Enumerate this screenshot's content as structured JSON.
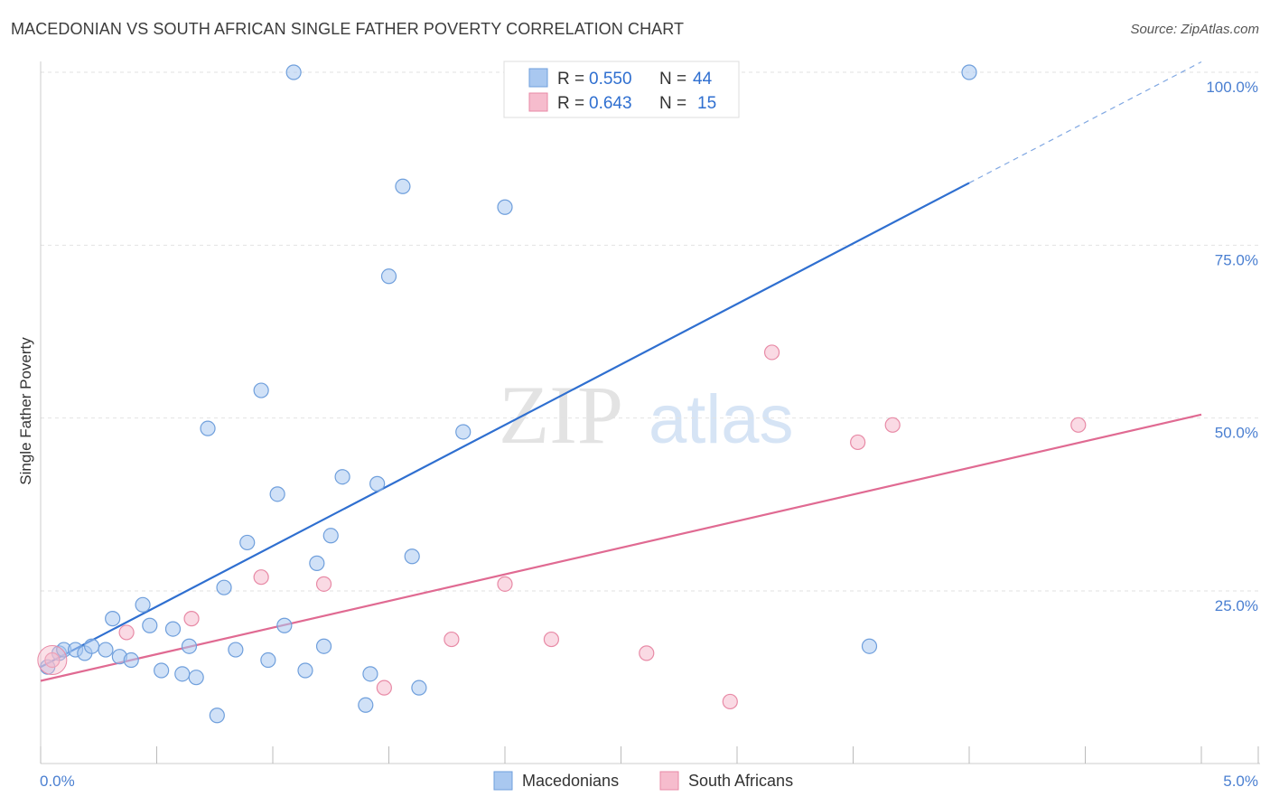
{
  "title": "MACEDONIAN VS SOUTH AFRICAN SINGLE FATHER POVERTY CORRELATION CHART",
  "source": "Source: ZipAtlas.com",
  "watermark": {
    "zip": "ZIP",
    "atlas": "atlas"
  },
  "legend": {
    "rows": [
      {
        "r_label": "R = ",
        "r_value": "0.550",
        "n_label": "N = ",
        "n_value": "44",
        "color": "#a9c8f0",
        "stroke": "#6f9fdc"
      },
      {
        "r_label": "R = ",
        "r_value": "0.643",
        "n_label": "N = ",
        "n_value": "15",
        "color": "#f6bccd",
        "stroke": "#e88aa6"
      }
    ]
  },
  "chart_data": {
    "type": "scatter",
    "title": "MACEDONIAN VS SOUTH AFRICAN SINGLE FATHER POVERTY CORRELATION CHART",
    "xlabel": "",
    "ylabel": "Single Father Poverty",
    "xlim": [
      0,
      5
    ],
    "ylim": [
      0,
      100
    ],
    "x_tick_labels": [
      "0.0%",
      "5.0%"
    ],
    "y_tick_labels": [
      "25.0%",
      "50.0%",
      "75.0%",
      "100.0%"
    ],
    "y_ticks": [
      25,
      50,
      75,
      100
    ],
    "grid": true,
    "legend_position": "top-center",
    "series": [
      {
        "name": "Macedonians",
        "color": "#a9c8f0",
        "stroke": "#6f9fdc",
        "line_color": "#2f6fd0",
        "trend": {
          "x0": 0.0,
          "y0": 14.0,
          "x1": 4.0,
          "y1": 84.0,
          "dash_to_x": 5.0,
          "dash_to_y": 101.5
        },
        "points": [
          [
            0.03,
            14.0
          ],
          [
            0.08,
            16.0
          ],
          [
            0.1,
            16.5
          ],
          [
            0.15,
            16.5
          ],
          [
            0.19,
            16.0
          ],
          [
            0.22,
            17.0
          ],
          [
            0.28,
            16.5
          ],
          [
            0.31,
            21.0
          ],
          [
            0.34,
            15.5
          ],
          [
            0.39,
            15.0
          ],
          [
            0.44,
            23.0
          ],
          [
            0.47,
            20.0
          ],
          [
            0.52,
            13.5
          ],
          [
            0.57,
            19.5
          ],
          [
            0.61,
            13.0
          ],
          [
            0.64,
            17.0
          ],
          [
            0.67,
            12.5
          ],
          [
            0.72,
            48.5
          ],
          [
            0.76,
            7.0
          ],
          [
            0.79,
            25.5
          ],
          [
            0.84,
            16.5
          ],
          [
            0.89,
            32.0
          ],
          [
            0.95,
            54.0
          ],
          [
            0.98,
            15.0
          ],
          [
            1.02,
            39.0
          ],
          [
            1.05,
            20.0
          ],
          [
            1.09,
            100.0
          ],
          [
            1.14,
            13.5
          ],
          [
            1.19,
            29.0
          ],
          [
            1.22,
            17.0
          ],
          [
            1.25,
            33.0
          ],
          [
            1.3,
            41.5
          ],
          [
            1.4,
            8.5
          ],
          [
            1.42,
            13.0
          ],
          [
            1.45,
            40.5
          ],
          [
            1.5,
            70.5
          ],
          [
            1.56,
            83.5
          ],
          [
            1.6,
            30.0
          ],
          [
            1.63,
            11.0
          ],
          [
            1.82,
            48.0
          ],
          [
            2.0,
            80.5
          ],
          [
            2.2,
            100.0
          ],
          [
            3.57,
            17.0
          ],
          [
            4.0,
            100.0
          ]
        ]
      },
      {
        "name": "South Africans",
        "color": "#f6bccd",
        "stroke": "#e88aa6",
        "line_color": "#e06a92",
        "trend": {
          "x0": 0.0,
          "y0": 12.0,
          "x1": 5.0,
          "y1": 50.5
        },
        "points": [
          [
            0.05,
            15.0
          ],
          [
            0.37,
            19.0
          ],
          [
            0.65,
            21.0
          ],
          [
            0.95,
            27.0
          ],
          [
            1.22,
            26.0
          ],
          [
            1.48,
            11.0
          ],
          [
            1.77,
            18.0
          ],
          [
            2.0,
            26.0
          ],
          [
            2.2,
            18.0
          ],
          [
            2.61,
            16.0
          ],
          [
            2.97,
            9.0
          ],
          [
            3.15,
            59.5
          ],
          [
            3.52,
            46.5
          ],
          [
            3.67,
            49.0
          ],
          [
            4.47,
            49.0
          ]
        ]
      }
    ]
  }
}
